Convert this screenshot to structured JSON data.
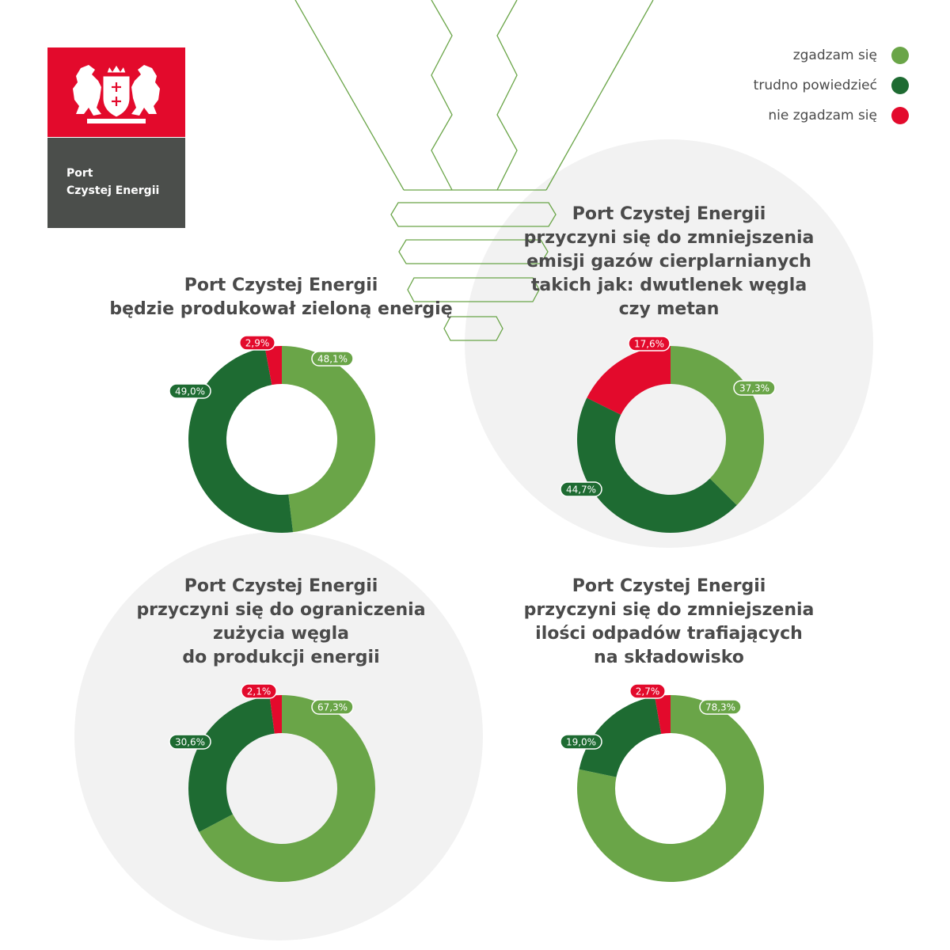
{
  "logo": {
    "line1": "Port",
    "line2": "Czystej Energii",
    "emblem": "gdansk-coat-of-arms-icon"
  },
  "legend": {
    "items": [
      {
        "label": "zgadzam się",
        "color": "#6aa548"
      },
      {
        "label": "trudno powiedzieć",
        "color": "#1e6b32"
      },
      {
        "label": "nie zgadzam się",
        "color": "#e30a2c"
      }
    ]
  },
  "colors": {
    "agree": "#6aa548",
    "neutral": "#1e6b32",
    "disagree": "#e30a2c",
    "background_circle": "#f2f2f2",
    "text": "#4a4a4a",
    "decoration": "#6aa548"
  },
  "chart_data": [
    {
      "type": "pie",
      "title_lines": [
        "Port Czystej Energii",
        "będzie produkował zieloną energię"
      ],
      "categories": [
        "zgadzam się",
        "trudno powiedzieć",
        "nie zgadzam się"
      ],
      "values": [
        48.1,
        49.0,
        2.9
      ],
      "labels": [
        "48,1%",
        "49,0%",
        "2,9%"
      ]
    },
    {
      "type": "pie",
      "title_lines": [
        "Port Czystej Energii",
        "przyczyni się do zmniejszenia",
        "emisji gazów cierplarnianych",
        "takich jak: dwutlenek węgla",
        "czy metan"
      ],
      "categories": [
        "zgadzam się",
        "trudno powiedzieć",
        "nie zgadzam się"
      ],
      "values": [
        37.3,
        44.7,
        17.6
      ],
      "labels": [
        "37,3%",
        "44,7%",
        "17,6%"
      ]
    },
    {
      "type": "pie",
      "title_lines": [
        "Port Czystej Energii",
        "przyczyni się do ograniczenia",
        "zużycia węgla",
        "do produkcji energii"
      ],
      "categories": [
        "zgadzam się",
        "trudno powiedzieć",
        "nie zgadzam się"
      ],
      "values": [
        67.3,
        30.6,
        2.1
      ],
      "labels": [
        "67,3%",
        "30,6%",
        "2,1%"
      ]
    },
    {
      "type": "pie",
      "title_lines": [
        "Port Czystej Energii",
        "przyczyni się do zmniejszenia",
        "ilości odpadów trafiających",
        "na składowisko"
      ],
      "categories": [
        "zgadzam się",
        "trudno powiedzieć",
        "nie zgadzam się"
      ],
      "values": [
        78.3,
        19.0,
        2.7
      ],
      "labels": [
        "78,3%",
        "19,0%",
        "2,7%"
      ]
    }
  ]
}
